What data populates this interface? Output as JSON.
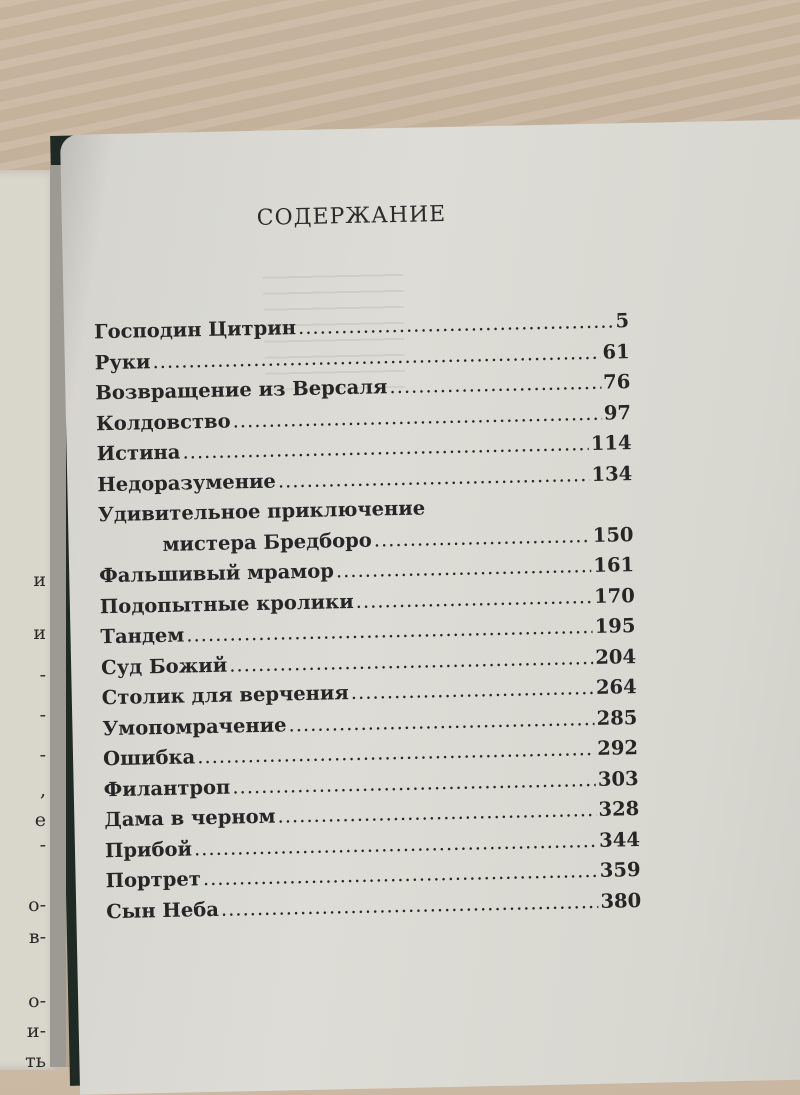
{
  "left_page_fragments": [
    "и",
    "и",
    "-",
    "-",
    "-",
    ",",
    "е",
    "-",
    "о-",
    "в-",
    "о-",
    "и-",
    "ть"
  ],
  "title": "СОДЕРЖАНИЕ",
  "entries": [
    {
      "title": "Господин Цитрин",
      "page": "5"
    },
    {
      "title": "Руки",
      "page": "61"
    },
    {
      "title": "Возвращение из Версаля",
      "page": "76"
    },
    {
      "title": "Колдовство",
      "page": "97"
    },
    {
      "title": "Истина",
      "page": "114"
    },
    {
      "title": "Недоразумение",
      "page": "134"
    },
    {
      "title": "Удивительное приключение",
      "page": ""
    },
    {
      "title": "мистера Бредборо",
      "page": "150"
    },
    {
      "title": "Фальшивый мрамор",
      "page": "161"
    },
    {
      "title": "Подопытные кролики",
      "page": "170"
    },
    {
      "title": "Тандем",
      "page": "195"
    },
    {
      "title": "Суд Божий",
      "page": "204"
    },
    {
      "title": "Столик для верчения",
      "page": "264"
    },
    {
      "title": "Умопомрачение",
      "page": "285"
    },
    {
      "title": "Ошибка",
      "page": "292"
    },
    {
      "title": "Филантроп",
      "page": "303"
    },
    {
      "title": "Дама в черном",
      "page": "328"
    },
    {
      "title": "Прибой",
      "page": "344"
    },
    {
      "title": "Портрет",
      "page": "359"
    },
    {
      "title": "Сын Неба",
      "page": "380"
    }
  ]
}
